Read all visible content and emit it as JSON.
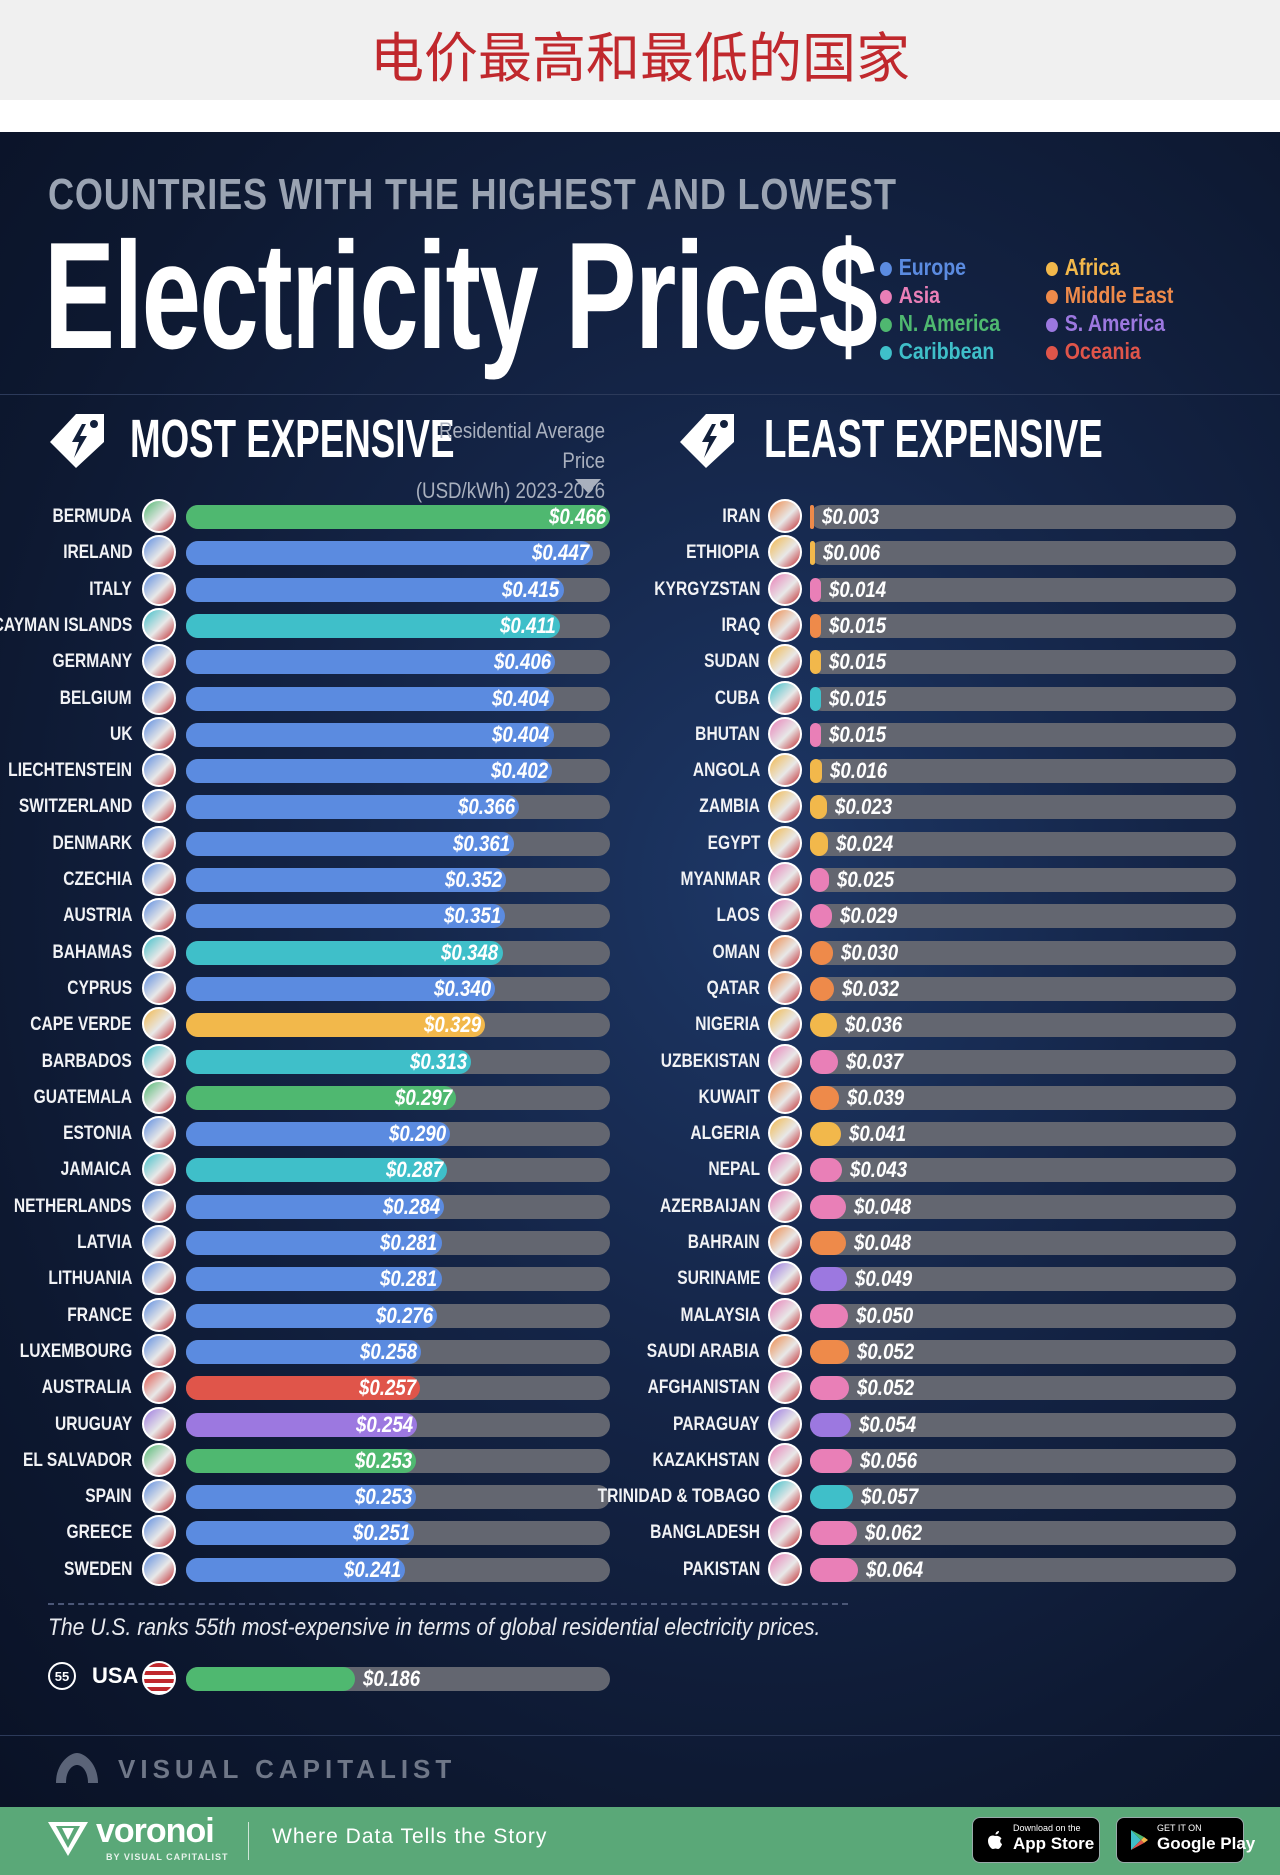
{
  "banner": {
    "title": "电价最高和最低的国家"
  },
  "header": {
    "supertitle": "COUNTRIES WITH THE HIGHEST AND LOWEST",
    "title": "Electricity Price$"
  },
  "legend": [
    {
      "label": "Europe",
      "color": "#5b8be0"
    },
    {
      "label": "Africa",
      "color": "#f2b84b"
    },
    {
      "label": "Asia",
      "color": "#e97fb7"
    },
    {
      "label": "Middle East",
      "color": "#ee8a4a"
    },
    {
      "label": "N. America",
      "color": "#4fb870"
    },
    {
      "label": "S. America",
      "color": "#9c78e0"
    },
    {
      "label": "Caribbean",
      "color": "#3fbfc9"
    },
    {
      "label": "Oceania",
      "color": "#e0554a"
    }
  ],
  "sections": {
    "most": "MOST EXPENSIVE",
    "least": "LEAST EXPENSIVE",
    "price_note_line1": "Residential Average Price",
    "price_note_line2": "(USD/kWh) 2023-2026"
  },
  "chart_data": [
    {
      "type": "bar",
      "title": "MOST EXPENSIVE",
      "unit": "USD/kWh",
      "xlim": [
        0,
        0.466
      ],
      "series": [
        {
          "country": "BERMUDA",
          "value": 0.466,
          "label": "$0.466",
          "region": "N. America"
        },
        {
          "country": "IRELAND",
          "value": 0.447,
          "label": "$0.447",
          "region": "Europe"
        },
        {
          "country": "ITALY",
          "value": 0.415,
          "label": "$0.415",
          "region": "Europe"
        },
        {
          "country": "CAYMAN ISLANDS",
          "value": 0.411,
          "label": "$0.411",
          "region": "Caribbean"
        },
        {
          "country": "GERMANY",
          "value": 0.406,
          "label": "$0.406",
          "region": "Europe"
        },
        {
          "country": "BELGIUM",
          "value": 0.404,
          "label": "$0.404",
          "region": "Europe"
        },
        {
          "country": "UK",
          "value": 0.404,
          "label": "$0.404",
          "region": "Europe"
        },
        {
          "country": "LIECHTENSTEIN",
          "value": 0.402,
          "label": "$0.402",
          "region": "Europe"
        },
        {
          "country": "SWITZERLAND",
          "value": 0.366,
          "label": "$0.366",
          "region": "Europe"
        },
        {
          "country": "DENMARK",
          "value": 0.361,
          "label": "$0.361",
          "region": "Europe"
        },
        {
          "country": "CZECHIA",
          "value": 0.352,
          "label": "$0.352",
          "region": "Europe"
        },
        {
          "country": "AUSTRIA",
          "value": 0.351,
          "label": "$0.351",
          "region": "Europe"
        },
        {
          "country": "BAHAMAS",
          "value": 0.348,
          "label": "$0.348",
          "region": "Caribbean"
        },
        {
          "country": "CYPRUS",
          "value": 0.34,
          "label": "$0.340",
          "region": "Europe"
        },
        {
          "country": "CAPE VERDE",
          "value": 0.329,
          "label": "$0.329",
          "region": "Africa"
        },
        {
          "country": "BARBADOS",
          "value": 0.313,
          "label": "$0.313",
          "region": "Caribbean"
        },
        {
          "country": "GUATEMALA",
          "value": 0.297,
          "label": "$0.297",
          "region": "N. America"
        },
        {
          "country": "ESTONIA",
          "value": 0.29,
          "label": "$0.290",
          "region": "Europe"
        },
        {
          "country": "JAMAICA",
          "value": 0.287,
          "label": "$0.287",
          "region": "Caribbean"
        },
        {
          "country": "NETHERLANDS",
          "value": 0.284,
          "label": "$0.284",
          "region": "Europe"
        },
        {
          "country": "LATVIA",
          "value": 0.281,
          "label": "$0.281",
          "region": "Europe"
        },
        {
          "country": "LITHUANIA",
          "value": 0.281,
          "label": "$0.281",
          "region": "Europe"
        },
        {
          "country": "FRANCE",
          "value": 0.276,
          "label": "$0.276",
          "region": "Europe"
        },
        {
          "country": "LUXEMBOURG",
          "value": 0.258,
          "label": "$0.258",
          "region": "Europe"
        },
        {
          "country": "AUSTRALIA",
          "value": 0.257,
          "label": "$0.257",
          "region": "Oceania"
        },
        {
          "country": "URUGUAY",
          "value": 0.254,
          "label": "$0.254",
          "region": "S. America"
        },
        {
          "country": "EL SALVADOR",
          "value": 0.253,
          "label": "$0.253",
          "region": "N. America"
        },
        {
          "country": "SPAIN",
          "value": 0.253,
          "label": "$0.253",
          "region": "Europe"
        },
        {
          "country": "GREECE",
          "value": 0.251,
          "label": "$0.251",
          "region": "Europe"
        },
        {
          "country": "SWEDEN",
          "value": 0.241,
          "label": "$0.241",
          "region": "Europe"
        }
      ]
    },
    {
      "type": "bar",
      "title": "LEAST EXPENSIVE",
      "unit": "USD/kWh",
      "series": [
        {
          "country": "IRAN",
          "value": 0.003,
          "label": "$0.003",
          "region": "Middle East"
        },
        {
          "country": "ETHIOPIA",
          "value": 0.006,
          "label": "$0.006",
          "region": "Africa"
        },
        {
          "country": "KYRGYZSTAN",
          "value": 0.014,
          "label": "$0.014",
          "region": "Asia"
        },
        {
          "country": "IRAQ",
          "value": 0.015,
          "label": "$0.015",
          "region": "Middle East"
        },
        {
          "country": "SUDAN",
          "value": 0.015,
          "label": "$0.015",
          "region": "Africa"
        },
        {
          "country": "CUBA",
          "value": 0.015,
          "label": "$0.015",
          "region": "Caribbean"
        },
        {
          "country": "BHUTAN",
          "value": 0.015,
          "label": "$0.015",
          "region": "Asia"
        },
        {
          "country": "ANGOLA",
          "value": 0.016,
          "label": "$0.016",
          "region": "Africa"
        },
        {
          "country": "ZAMBIA",
          "value": 0.023,
          "label": "$0.023",
          "region": "Africa"
        },
        {
          "country": "EGYPT",
          "value": 0.024,
          "label": "$0.024",
          "region": "Africa"
        },
        {
          "country": "MYANMAR",
          "value": 0.025,
          "label": "$0.025",
          "region": "Asia"
        },
        {
          "country": "LAOS",
          "value": 0.029,
          "label": "$0.029",
          "region": "Asia"
        },
        {
          "country": "OMAN",
          "value": 0.03,
          "label": "$0.030",
          "region": "Middle East"
        },
        {
          "country": "QATAR",
          "value": 0.032,
          "label": "$0.032",
          "region": "Middle East"
        },
        {
          "country": "NIGERIA",
          "value": 0.036,
          "label": "$0.036",
          "region": "Africa"
        },
        {
          "country": "UZBEKISTAN",
          "value": 0.037,
          "label": "$0.037",
          "region": "Asia"
        },
        {
          "country": "KUWAIT",
          "value": 0.039,
          "label": "$0.039",
          "region": "Middle East"
        },
        {
          "country": "ALGERIA",
          "value": 0.041,
          "label": "$0.041",
          "region": "Africa"
        },
        {
          "country": "NEPAL",
          "value": 0.043,
          "label": "$0.043",
          "region": "Asia"
        },
        {
          "country": "AZERBAIJAN",
          "value": 0.048,
          "label": "$0.048",
          "region": "Asia"
        },
        {
          "country": "BAHRAIN",
          "value": 0.048,
          "label": "$0.048",
          "region": "Middle East"
        },
        {
          "country": "SURINAME",
          "value": 0.049,
          "label": "$0.049",
          "region": "S. America"
        },
        {
          "country": "MALAYSIA",
          "value": 0.05,
          "label": "$0.050",
          "region": "Asia"
        },
        {
          "country": "SAUDI ARABIA",
          "value": 0.052,
          "label": "$0.052",
          "region": "Middle East"
        },
        {
          "country": "AFGHANISTAN",
          "value": 0.052,
          "label": "$0.052",
          "region": "Asia"
        },
        {
          "country": "PARAGUAY",
          "value": 0.054,
          "label": "$0.054",
          "region": "S. America"
        },
        {
          "country": "KAZAKHSTAN",
          "value": 0.056,
          "label": "$0.056",
          "region": "Asia"
        },
        {
          "country": "TRINIDAD & TOBAGO",
          "value": 0.057,
          "label": "$0.057",
          "region": "Caribbean"
        },
        {
          "country": "BANGLADESH",
          "value": 0.062,
          "label": "$0.062",
          "region": "Asia"
        },
        {
          "country": "PAKISTAN",
          "value": 0.064,
          "label": "$0.064",
          "region": "Asia"
        }
      ]
    }
  ],
  "usa": {
    "note": "The U.S. ranks 55th most-expensive in terms of global residential electricity prices.",
    "rank": "55",
    "country": "USA",
    "value": 0.186,
    "label": "$0.186",
    "region": "N. America"
  },
  "brand": {
    "visual_capitalist": "VISUAL CAPITALIST",
    "voronoi": "voronoi",
    "voronoi_sub": "BY VISUAL CAPITALIST",
    "tagline": "Where Data Tells the Story",
    "app_store_small": "Download on the",
    "app_store_big": "App Store",
    "google_small": "GET IT ON",
    "google_big": "Google Play"
  }
}
